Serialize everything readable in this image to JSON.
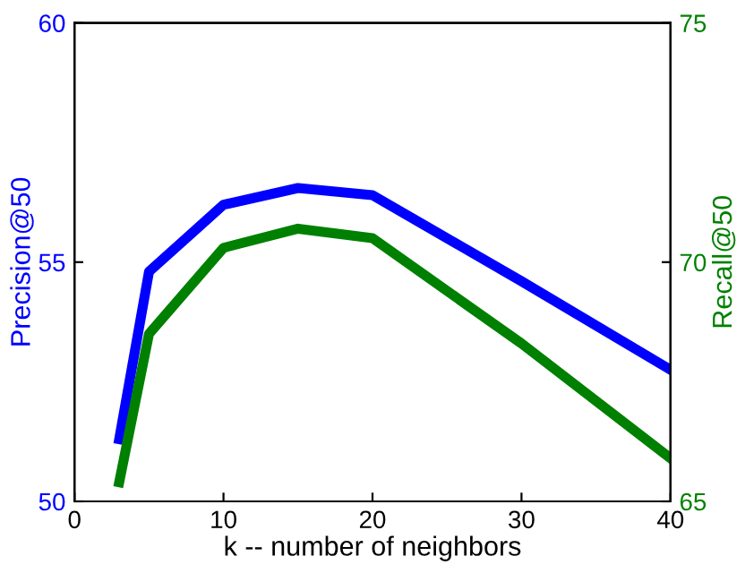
{
  "chart_data": {
    "type": "line",
    "xlabel": "k -- number of neighbors",
    "ylabel": "Precision@50",
    "y2label": "Recall@50",
    "x": [
      3,
      5,
      10,
      15,
      20,
      30,
      40
    ],
    "series": [
      {
        "color": "#0000ff",
        "values": [
          51.3,
          54.8,
          56.2,
          56.55,
          56.4,
          54.6,
          52.75
        ]
      },
      {
        "color": "#008000",
        "axis": "y2",
        "values": [
          65.4,
          68.5,
          70.3,
          70.7,
          70.5,
          68.3,
          65.9
        ]
      }
    ],
    "xlim": [
      0,
      40
    ],
    "xticks": [
      0,
      10,
      20,
      30,
      40
    ],
    "ylim": [
      50,
      60
    ],
    "yticks": [
      50,
      55,
      60
    ],
    "y2lim": [
      65,
      75
    ],
    "y2ticks": [
      65,
      70,
      75
    ],
    "grid": false,
    "legend": false,
    "marker": "none",
    "line_style": "solid"
  }
}
